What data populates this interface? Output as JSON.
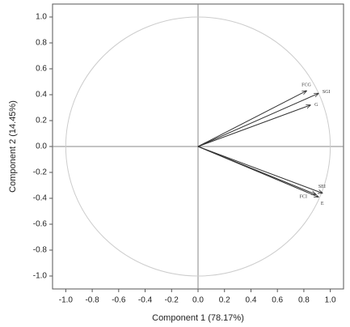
{
  "chart_data": {
    "type": "vector",
    "xlabel": "Component 1 (78.17%)",
    "ylabel": "Component 2 (14.45%)",
    "xlim": [
      -1.1,
      1.1
    ],
    "ylim": [
      -1.1,
      1.1
    ],
    "xticks": [
      {
        "value": -1,
        "label": "-1.0"
      },
      -0.8,
      -0.6,
      -0.4,
      -0.2,
      {
        "value": 0,
        "label": "0.0"
      },
      0.2,
      0.4,
      0.6,
      0.8,
      {
        "value": 1,
        "label": "1.0"
      }
    ],
    "yticks": [
      {
        "value": 1,
        "label": "1.0"
      },
      0.8,
      0.6,
      0.4,
      0.2,
      {
        "value": 0,
        "label": "0.0"
      },
      -0.2,
      -0.4,
      -0.6,
      -0.8,
      {
        "value": -1,
        "label": "-1.0"
      }
    ],
    "unit_circle": true,
    "zero_lines": true,
    "color": "#333333",
    "vectors": [
      {
        "name": "FCG",
        "x": 0.82,
        "y": 0.43
      },
      {
        "name": "SGI",
        "x": 0.91,
        "y": 0.41
      },
      {
        "name": "G",
        "x": 0.85,
        "y": 0.32
      },
      {
        "name": "SEI",
        "x": 0.94,
        "y": -0.36
      },
      {
        "name": "FCI",
        "x": 0.89,
        "y": -0.37
      },
      {
        "name": "E",
        "x": 0.91,
        "y": -0.39
      }
    ]
  }
}
